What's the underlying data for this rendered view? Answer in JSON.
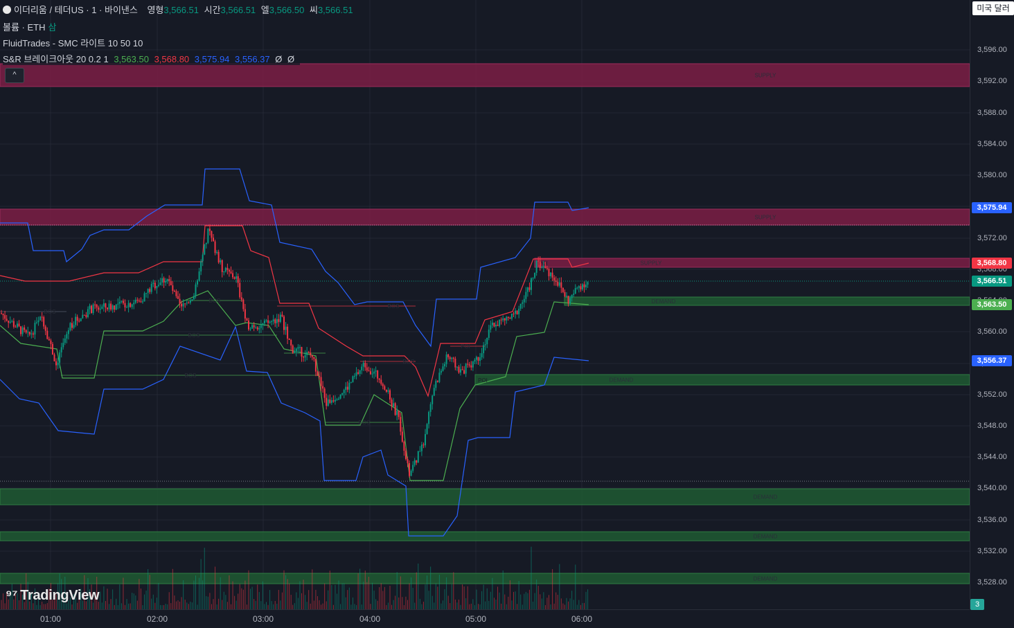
{
  "header": {
    "symbol": "이더리움 / 테더US · 1 · 바이낸스",
    "o_label": "영형",
    "o_value": "3,566.51",
    "h_label": "시간",
    "h_value": "3,566.51",
    "l_label": "엘",
    "l_value": "3,566.50",
    "c_label": "씨",
    "c_value": "3,566.51"
  },
  "volume_legend": {
    "label": "볼륨 · ETH",
    "extra": "삼"
  },
  "smc_legend": {
    "label": "FluidTrades - SMC 라이트 10 50 10"
  },
  "sr_legend": {
    "label": "S&R 브레이크아웃 20 0.2 1",
    "v1": "3,563.50",
    "v2": "3,568.80",
    "v3": "3,575.94",
    "v4": "3,556.37",
    "na1": "Ø",
    "na2": "Ø"
  },
  "currency": "미국 달러",
  "scale_badge": "3",
  "logo": "TradingView",
  "collapse_icon": "^",
  "price_ticks": [
    "3,596.00",
    "3,592.00",
    "3,588.00",
    "3,584.00",
    "3,580.00",
    "3,576.00",
    "3,572.00",
    "3,568.00",
    "3,564.00",
    "3,560.00",
    "3,556.00",
    "3,552.00",
    "3,548.00",
    "3,544.00",
    "3,540.00",
    "3,536.00",
    "3,532.00",
    "3,528.00"
  ],
  "time_ticks": [
    "01:00",
    "02:00",
    "03:00",
    "04:00",
    "05:00",
    "06:00"
  ],
  "price_tags": [
    {
      "value": "3,575.94",
      "color": "#2962ff"
    },
    {
      "value": "3,568.80",
      "color": "#f23645"
    },
    {
      "value": "3,566.51",
      "color": "#089981"
    },
    {
      "value": "3,563.50",
      "color": "#4caf50"
    },
    {
      "value": "3,556.37",
      "color": "#2962ff"
    }
  ],
  "zones": [
    {
      "type": "supply",
      "label": "SUPPLY"
    },
    {
      "type": "supply",
      "label": "SUPPLY"
    },
    {
      "type": "supply",
      "label": "SUPPLY"
    },
    {
      "type": "demand",
      "label": "DEMAND"
    },
    {
      "type": "demand",
      "label": "DEMAND"
    },
    {
      "type": "demand",
      "label": "DEMAND"
    },
    {
      "type": "demand",
      "label": "DEMAND"
    },
    {
      "type": "demand",
      "label": "DEMAND"
    }
  ],
  "chart_markers": [
    "BOS",
    "BOS",
    "BOS",
    "BOS",
    "BOS",
    "BOS",
    "BOS",
    "POI",
    "POI"
  ],
  "colors": {
    "background": "#161a25",
    "up": "#089981",
    "down": "#f23645",
    "upper_band": "#2962ff",
    "resistance": "#f23645",
    "support": "#4caf50",
    "supply_zone": "#7b1e45",
    "demand_zone": "#1e5a32"
  }
}
